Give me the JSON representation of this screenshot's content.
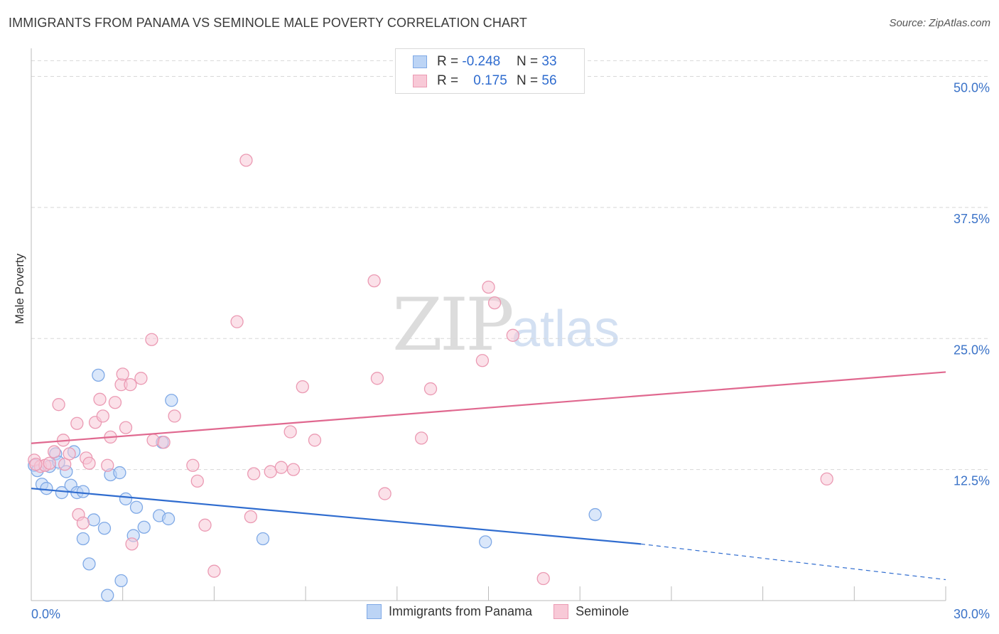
{
  "header": {
    "title": "IMMIGRANTS FROM PANAMA VS SEMINOLE MALE POVERTY CORRELATION CHART",
    "source": "Source: ZipAtlas.com"
  },
  "watermark": {
    "zip": "ZIP",
    "atlas": "atlas"
  },
  "legend_top": {
    "rows": [
      {
        "r_label": "R = ",
        "r_value": "-0.248",
        "n_label": "N = ",
        "n_value": "33"
      },
      {
        "r_label": "R = ",
        "r_value": "0.175",
        "n_label": "N = ",
        "n_value": "56"
      }
    ]
  },
  "legend_bottom": {
    "items": [
      {
        "label": "Immigrants from Panama"
      },
      {
        "label": "Seminole"
      }
    ]
  },
  "colors": {
    "blue_fill": "#bcd4f5",
    "blue_stroke": "#7fa9e6",
    "blue_line": "#2f6ccf",
    "pink_fill": "#f8c9d7",
    "pink_stroke": "#eb9ab3",
    "pink_line": "#e0688f",
    "grid": "#d8d8d8",
    "tick_label": "#3b73c8"
  },
  "chart_data": {
    "type": "scatter",
    "title": "IMMIGRANTS FROM PANAMA VS SEMINOLE MALE POVERTY CORRELATION CHART",
    "xlabel": "",
    "ylabel": "Male Poverty",
    "xlim": [
      0,
      30
    ],
    "ylim": [
      0,
      52
    ],
    "x_tick_labels": [
      "0.0%",
      "30.0%"
    ],
    "y_ticks": [
      12.5,
      25.0,
      37.5,
      50.0
    ],
    "y_tick_labels": [
      "12.5%",
      "25.0%",
      "37.5%",
      "50.0%"
    ],
    "grid": true,
    "legend_position": "top-center",
    "series": [
      {
        "name": "Immigrants from Panama",
        "color": "#7fa9e6",
        "points": [
          [
            0.1,
            12.9
          ],
          [
            0.2,
            12.4
          ],
          [
            0.35,
            11.1
          ],
          [
            0.5,
            10.7
          ],
          [
            0.6,
            12.8
          ],
          [
            0.8,
            14.0
          ],
          [
            0.9,
            13.2
          ],
          [
            1.0,
            10.3
          ],
          [
            1.15,
            12.3
          ],
          [
            1.3,
            11.0
          ],
          [
            1.4,
            14.2
          ],
          [
            1.5,
            10.3
          ],
          [
            1.7,
            10.4
          ],
          [
            1.7,
            5.9
          ],
          [
            1.9,
            3.5
          ],
          [
            2.05,
            7.7
          ],
          [
            2.2,
            21.5
          ],
          [
            2.4,
            6.9
          ],
          [
            2.5,
            0.5
          ],
          [
            2.6,
            12.0
          ],
          [
            2.9,
            12.2
          ],
          [
            2.95,
            1.9
          ],
          [
            3.1,
            9.7
          ],
          [
            3.35,
            6.2
          ],
          [
            3.45,
            8.9
          ],
          [
            3.7,
            7.0
          ],
          [
            4.2,
            8.1
          ],
          [
            4.3,
            15.1
          ],
          [
            4.5,
            7.8
          ],
          [
            4.6,
            19.1
          ],
          [
            7.6,
            5.9
          ],
          [
            14.9,
            5.6
          ],
          [
            18.5,
            8.2
          ]
        ],
        "trend": {
          "x": [
            0,
            20
          ],
          "y": [
            10.7,
            5.4
          ],
          "dashed_to": [
            30,
            2.0
          ]
        }
      },
      {
        "name": "Seminole",
        "color": "#eb9ab3",
        "points": [
          [
            0.1,
            13.4
          ],
          [
            0.3,
            12.8
          ],
          [
            0.45,
            12.9
          ],
          [
            0.6,
            13.1
          ],
          [
            0.75,
            14.2
          ],
          [
            0.9,
            18.7
          ],
          [
            1.05,
            15.3
          ],
          [
            1.1,
            13.0
          ],
          [
            1.25,
            14.0
          ],
          [
            1.5,
            16.9
          ],
          [
            1.55,
            8.2
          ],
          [
            1.7,
            7.4
          ],
          [
            1.8,
            13.6
          ],
          [
            1.9,
            13.1
          ],
          [
            2.1,
            17.0
          ],
          [
            2.25,
            19.2
          ],
          [
            2.35,
            17.6
          ],
          [
            2.5,
            12.9
          ],
          [
            2.6,
            15.6
          ],
          [
            2.75,
            18.9
          ],
          [
            2.95,
            20.6
          ],
          [
            3.0,
            21.6
          ],
          [
            3.1,
            16.5
          ],
          [
            3.25,
            20.6
          ],
          [
            3.3,
            5.4
          ],
          [
            3.6,
            21.2
          ],
          [
            3.95,
            24.9
          ],
          [
            4.0,
            15.3
          ],
          [
            4.35,
            15.1
          ],
          [
            4.7,
            17.6
          ],
          [
            5.3,
            12.9
          ],
          [
            5.45,
            11.4
          ],
          [
            5.7,
            7.2
          ],
          [
            6.0,
            2.8
          ],
          [
            6.75,
            26.6
          ],
          [
            7.05,
            42.0
          ],
          [
            7.2,
            8.0
          ],
          [
            7.3,
            12.1
          ],
          [
            7.85,
            12.3
          ],
          [
            8.2,
            12.7
          ],
          [
            8.5,
            16.1
          ],
          [
            8.6,
            12.5
          ],
          [
            8.9,
            20.4
          ],
          [
            9.3,
            15.3
          ],
          [
            11.25,
            30.5
          ],
          [
            11.35,
            21.2
          ],
          [
            11.6,
            10.2
          ],
          [
            12.8,
            15.5
          ],
          [
            13.1,
            20.2
          ],
          [
            14.8,
            22.9
          ],
          [
            15.0,
            29.9
          ],
          [
            15.2,
            28.4
          ],
          [
            15.8,
            25.3
          ],
          [
            16.8,
            2.1
          ],
          [
            26.1,
            11.6
          ],
          [
            0.15,
            13.0
          ]
        ],
        "trend": {
          "x": [
            0,
            30
          ],
          "y": [
            15.0,
            21.8
          ]
        }
      }
    ]
  }
}
